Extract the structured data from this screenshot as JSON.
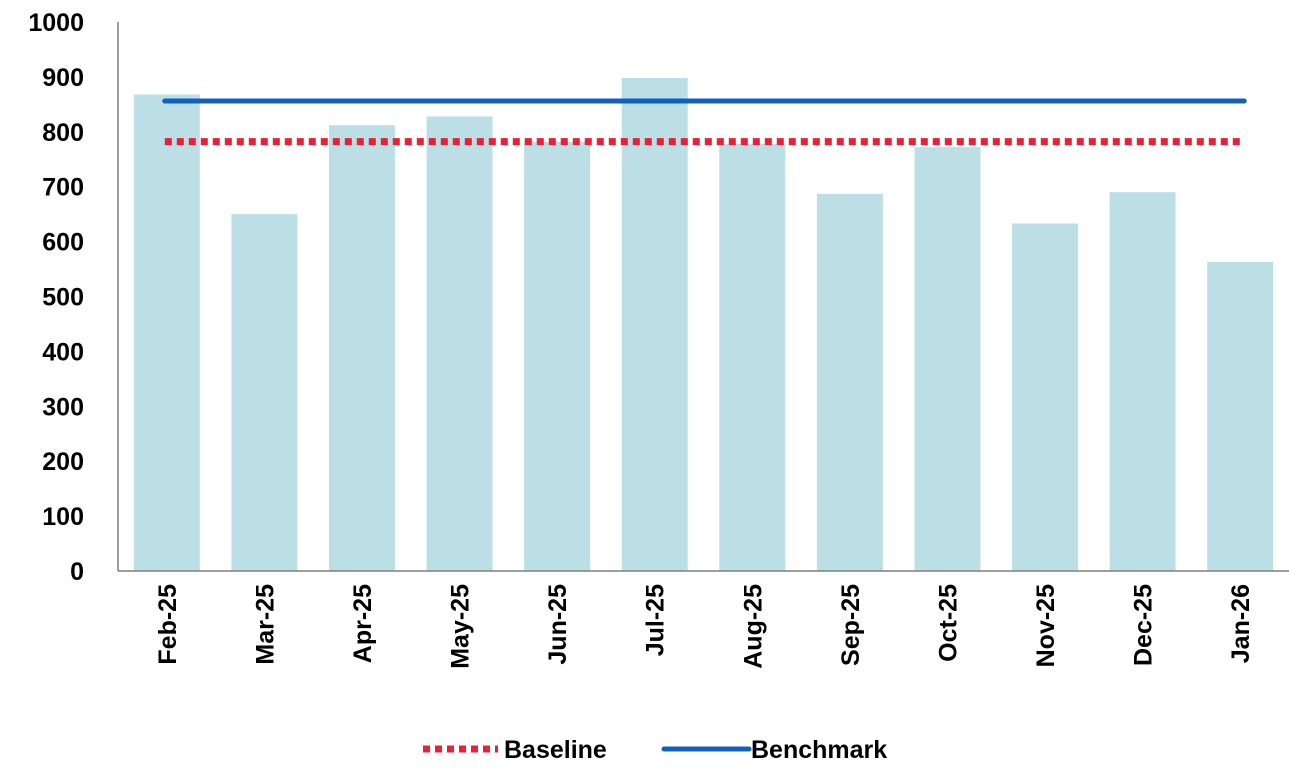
{
  "chart_data": {
    "type": "bar",
    "categories": [
      "Feb-25",
      "Mar-25",
      "Apr-25",
      "May-25",
      "Jun-25",
      "Jul-25",
      "Aug-25",
      "Sep-25",
      "Oct-25",
      "Nov-25",
      "Dec-25",
      "Jan-26"
    ],
    "series": [
      {
        "type": "bar",
        "values": [
          868,
          650,
          812,
          828,
          782,
          898,
          778,
          687,
          772,
          633,
          690,
          563
        ],
        "color": "#bcdfe6"
      },
      {
        "name": "Baseline",
        "type": "line",
        "style": "dotted",
        "values": [
          782,
          782,
          782,
          782,
          782,
          782,
          782,
          782,
          782,
          782,
          782,
          782
        ],
        "color": "#e8203a"
      },
      {
        "name": "Benchmark",
        "type": "line",
        "style": "solid",
        "values": [
          856,
          856,
          856,
          856,
          856,
          856,
          856,
          856,
          856,
          856,
          856,
          856
        ],
        "color": "#1060c0"
      }
    ],
    "y_ticks": [
      0,
      100,
      200,
      300,
      400,
      500,
      600,
      700,
      800,
      900,
      1000
    ],
    "ylim": [
      0,
      1000
    ],
    "grid": false,
    "legend_position": "bottom-center",
    "title": "",
    "xlabel": "",
    "ylabel": ""
  }
}
